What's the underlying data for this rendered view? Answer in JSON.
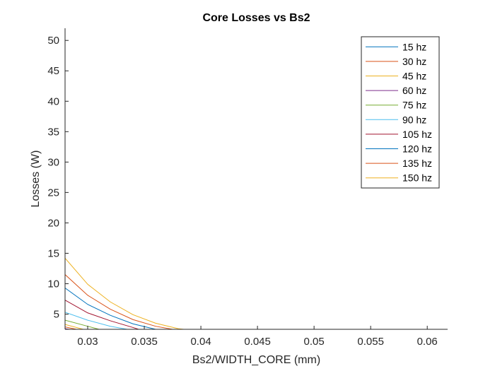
{
  "chart_data": {
    "type": "line",
    "title": "Core Losses vs Bs2",
    "xlabel": "Bs2/WIDTH_CORE (mm)",
    "ylabel": "Losses (W)",
    "xlim": [
      0.028,
      0.0618
    ],
    "ylim": [
      2.5,
      52
    ],
    "xticks": [
      0.03,
      0.035,
      0.04,
      0.045,
      0.05,
      0.055,
      0.06
    ],
    "xtick_labels": [
      "0.03",
      "0.035",
      "0.04",
      "0.045",
      "0.05",
      "0.055",
      "0.06"
    ],
    "yticks": [
      5,
      10,
      15,
      20,
      25,
      30,
      35,
      40,
      45,
      50
    ],
    "ytick_labels": [
      "5",
      "10",
      "15",
      "20",
      "25",
      "30",
      "35",
      "40",
      "45",
      "50"
    ],
    "grid": false,
    "legend_location": "top-right",
    "series": [
      {
        "name": "15 hz",
        "color": "#0072BD",
        "x": [
          0.028,
          0.0282
        ],
        "y": [
          2.55,
          2.5
        ]
      },
      {
        "name": "30 hz",
        "color": "#D95319",
        "x": [
          0.028,
          0.029
        ],
        "y": [
          2.9,
          2.5
        ]
      },
      {
        "name": "45 hz",
        "color": "#EDB120",
        "x": [
          0.028,
          0.0296
        ],
        "y": [
          3.3,
          2.5
        ]
      },
      {
        "name": "60 hz",
        "color": "#7E2F8E",
        "x": [
          0.028,
          0.0284
        ],
        "y": [
          2.6,
          2.5
        ]
      },
      {
        "name": "75 hz",
        "color": "#77AC30",
        "x": [
          0.028,
          0.03,
          0.031
        ],
        "y": [
          4.0,
          3.0,
          2.5
        ]
      },
      {
        "name": "90 hz",
        "color": "#4DBEEE",
        "x": [
          0.028,
          0.03,
          0.032,
          0.0335
        ],
        "y": [
          5.3,
          4.0,
          3.0,
          2.5
        ]
      },
      {
        "name": "105 hz",
        "color": "#A2142F",
        "x": [
          0.028,
          0.03,
          0.032,
          0.034,
          0.0345
        ],
        "y": [
          7.3,
          5.2,
          3.9,
          2.8,
          2.5
        ]
      },
      {
        "name": "120 hz",
        "color": "#0072BD",
        "x": [
          0.028,
          0.03,
          0.032,
          0.034,
          0.036
        ],
        "y": [
          9.3,
          6.6,
          4.8,
          3.4,
          2.5
        ]
      },
      {
        "name": "135 hz",
        "color": "#D95319",
        "x": [
          0.028,
          0.03,
          0.032,
          0.034,
          0.036,
          0.0375
        ],
        "y": [
          11.5,
          8.1,
          5.8,
          4.1,
          3.0,
          2.5
        ]
      },
      {
        "name": "150 hz",
        "color": "#EDB120",
        "x": [
          0.028,
          0.03,
          0.032,
          0.034,
          0.036,
          0.038,
          0.0385
        ],
        "y": [
          14.2,
          9.9,
          7.0,
          4.9,
          3.5,
          2.6,
          2.5
        ]
      }
    ]
  }
}
